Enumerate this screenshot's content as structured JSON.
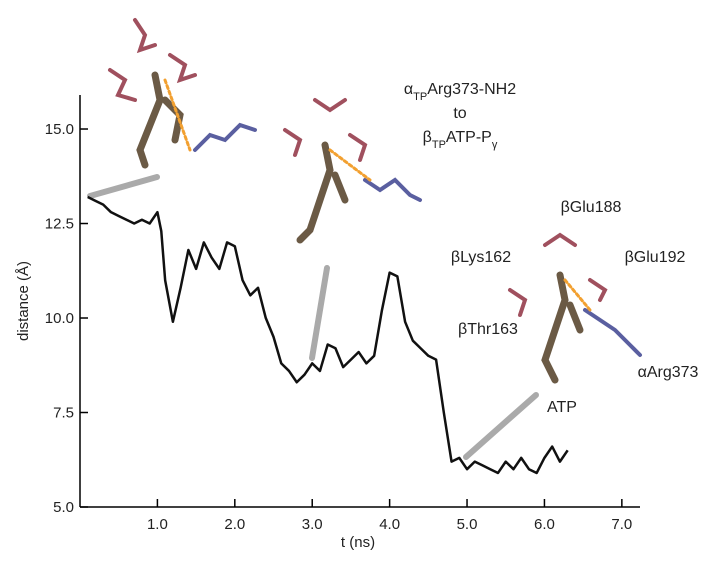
{
  "chart_data": {
    "type": "line",
    "x_label": "t (ns)",
    "y_label": "distance (Å)",
    "xlim": [
      0,
      7.25
    ],
    "ylim": [
      5,
      15.9
    ],
    "xticks": [
      {
        "value": 1,
        "label": "1.0"
      },
      {
        "value": 2,
        "label": "2.0"
      },
      {
        "value": 3,
        "label": "3.0"
      },
      {
        "value": 4,
        "label": "4.0"
      },
      {
        "value": 5,
        "label": "5.0"
      },
      {
        "value": 6,
        "label": "6.0"
      },
      {
        "value": 7,
        "label": "7.0"
      }
    ],
    "yticks": [
      {
        "value": 5,
        "label": "5.0"
      },
      7.5,
      {
        "value": 10,
        "label": "10.0"
      },
      12.5,
      {
        "value": 15,
        "label": "15.0"
      }
    ],
    "x": [
      0.1,
      0.2,
      0.3,
      0.4,
      0.5,
      0.6,
      0.7,
      0.8,
      0.9,
      1.0,
      1.05,
      1.1,
      1.2,
      1.3,
      1.4,
      1.5,
      1.6,
      1.7,
      1.8,
      1.9,
      2.0,
      2.1,
      2.2,
      2.3,
      2.4,
      2.5,
      2.6,
      2.7,
      2.8,
      2.9,
      3.0,
      3.1,
      3.2,
      3.3,
      3.4,
      3.5,
      3.6,
      3.7,
      3.8,
      3.9,
      4.0,
      4.1,
      4.2,
      4.3,
      4.4,
      4.5,
      4.6,
      4.7,
      4.8,
      4.9,
      5.0,
      5.1,
      5.2,
      5.3,
      5.4,
      5.5,
      5.6,
      5.7,
      5.8,
      5.9,
      6.0,
      6.1,
      6.2,
      6.3
    ],
    "series": [
      {
        "color": "#111111",
        "values": [
          13.2,
          13.1,
          13.0,
          12.8,
          12.7,
          12.6,
          12.5,
          12.6,
          12.5,
          12.8,
          12.3,
          11.0,
          9.9,
          10.8,
          11.8,
          11.3,
          12.0,
          11.6,
          11.3,
          12.0,
          11.9,
          11.0,
          10.6,
          10.8,
          10.0,
          9.5,
          8.8,
          8.6,
          8.3,
          8.5,
          8.8,
          8.6,
          9.3,
          9.2,
          8.7,
          8.9,
          9.1,
          8.8,
          9.0,
          10.2,
          11.2,
          11.1,
          9.9,
          9.4,
          9.2,
          9.0,
          8.9,
          7.5,
          6.2,
          6.3,
          6.0,
          6.2,
          6.1,
          6.0,
          5.9,
          6.2,
          6.0,
          6.3,
          6.0,
          5.9,
          6.3,
          6.6,
          6.2,
          6.5
        ]
      }
    ],
    "annotations": [
      [
        "α",
        "TP",
        "Arg373-NH2"
      ],
      [
        "to"
      ],
      [
        "β",
        "TP",
        "ATP-P",
        "γ"
      ]
    ],
    "residue_labels": [
      "βGlu188",
      "βLys162",
      "βGlu192",
      "βThr163",
      "αArg373",
      "ATP"
    ]
  }
}
